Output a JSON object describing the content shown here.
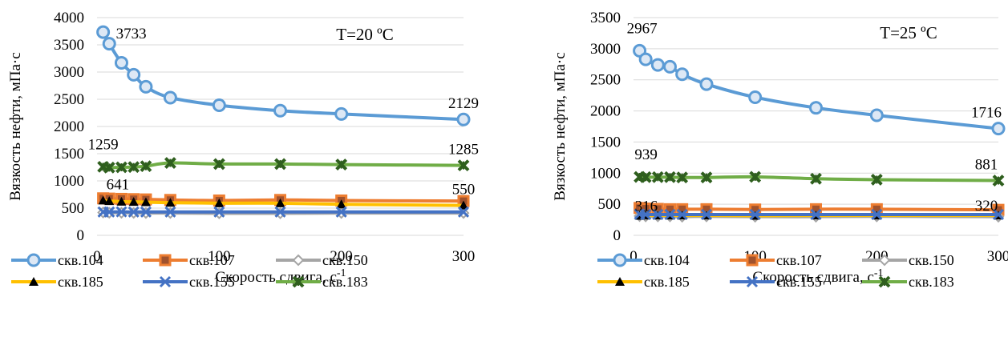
{
  "chart_data": [
    {
      "type": "line",
      "title": "T=20 ºC",
      "xlabel": "Скорость сдвига, с-1",
      "ylabel": "Вязкость нефти, мПа·с",
      "xlim": [
        0,
        300
      ],
      "ylim": [
        0,
        4000
      ],
      "xticks": [
        0,
        100,
        200,
        300
      ],
      "yticks": [
        0,
        500,
        1000,
        1500,
        2000,
        2500,
        3000,
        3500,
        4000
      ],
      "grid": "horizontal",
      "legend_position": "bottom",
      "x": [
        5,
        10,
        20,
        30,
        40,
        60,
        100,
        150,
        200,
        300
      ],
      "series": [
        {
          "name": "скв.104",
          "color": "#5b9bd5",
          "marker": "circle",
          "values": [
            3733,
            3520,
            3170,
            2950,
            2730,
            2530,
            2390,
            2290,
            2230,
            2129
          ]
        },
        {
          "name": "скв.107",
          "color": "#ed7d31",
          "marker": "square",
          "values": [
            680,
            675,
            670,
            665,
            660,
            650,
            640,
            650,
            640,
            630
          ]
        },
        {
          "name": "скв.150",
          "color": "#a5a5a5",
          "marker": "diamond",
          "values": [
            420,
            415,
            415,
            412,
            410,
            410,
            405,
            405,
            410,
            410
          ]
        },
        {
          "name": "скв.185",
          "color": "#ffc000",
          "marker": "triangle",
          "values": [
            641,
            630,
            620,
            615,
            610,
            600,
            590,
            590,
            570,
            550
          ]
        },
        {
          "name": "скв.155",
          "color": "#4472c4",
          "marker": "x",
          "values": [
            430,
            430,
            432,
            430,
            430,
            430,
            430,
            430,
            430,
            430
          ]
        },
        {
          "name": "скв.183",
          "color": "#70ad47",
          "marker": "star",
          "values": [
            1259,
            1245,
            1250,
            1255,
            1270,
            1330,
            1310,
            1310,
            1300,
            1285
          ]
        }
      ],
      "annotations": [
        {
          "x": 5,
          "y": 3733,
          "text": "3733"
        },
        {
          "x": 300,
          "y": 2129,
          "text": "2129"
        },
        {
          "x": 5,
          "y": 1259,
          "text": "1259"
        },
        {
          "x": 300,
          "y": 1285,
          "text": "1285"
        },
        {
          "x": 5,
          "y": 641,
          "text": "641"
        },
        {
          "x": 300,
          "y": 550,
          "text": "550"
        }
      ]
    },
    {
      "type": "line",
      "title": "T=25 ºC",
      "xlabel": "Скорость сдвига, с-1",
      "ylabel": "Вязкость нефти, мПа·с",
      "xlim": [
        0,
        300
      ],
      "ylim": [
        0,
        3500
      ],
      "xticks": [
        0,
        100,
        200,
        300
      ],
      "yticks": [
        0,
        500,
        1000,
        1500,
        2000,
        2500,
        3000,
        3500
      ],
      "grid": "horizontal",
      "legend_position": "bottom",
      "x": [
        5,
        10,
        20,
        30,
        40,
        60,
        100,
        150,
        200,
        300
      ],
      "series": [
        {
          "name": "скв.104",
          "color": "#5b9bd5",
          "marker": "circle",
          "values": [
            2967,
            2830,
            2740,
            2710,
            2590,
            2430,
            2220,
            2050,
            1930,
            1716
          ]
        },
        {
          "name": "скв.107",
          "color": "#ed7d31",
          "marker": "square",
          "values": [
            440,
            430,
            425,
            420,
            420,
            420,
            415,
            420,
            420,
            410
          ]
        },
        {
          "name": "скв.150",
          "color": "#a5a5a5",
          "marker": "diamond",
          "values": [
            310,
            305,
            305,
            305,
            300,
            305,
            300,
            300,
            305,
            300
          ]
        },
        {
          "name": "скв.185",
          "color": "#ffc000",
          "marker": "triangle",
          "values": [
            316,
            320,
            320,
            320,
            320,
            320,
            315,
            320,
            320,
            320
          ]
        },
        {
          "name": "скв.155",
          "color": "#4472c4",
          "marker": "x",
          "values": [
            340,
            335,
            335,
            335,
            335,
            335,
            335,
            335,
            335,
            335
          ]
        },
        {
          "name": "скв.183",
          "color": "#70ad47",
          "marker": "star",
          "values": [
            939,
            935,
            935,
            935,
            930,
            930,
            940,
            910,
            895,
            881
          ]
        }
      ],
      "annotations": [
        {
          "x": 5,
          "y": 2967,
          "text": "2967"
        },
        {
          "x": 300,
          "y": 1716,
          "text": "1716"
        },
        {
          "x": 5,
          "y": 939,
          "text": "939"
        },
        {
          "x": 300,
          "y": 881,
          "text": "881"
        },
        {
          "x": 5,
          "y": 316,
          "text": "316"
        },
        {
          "x": 300,
          "y": 320,
          "text": "320"
        }
      ]
    }
  ]
}
